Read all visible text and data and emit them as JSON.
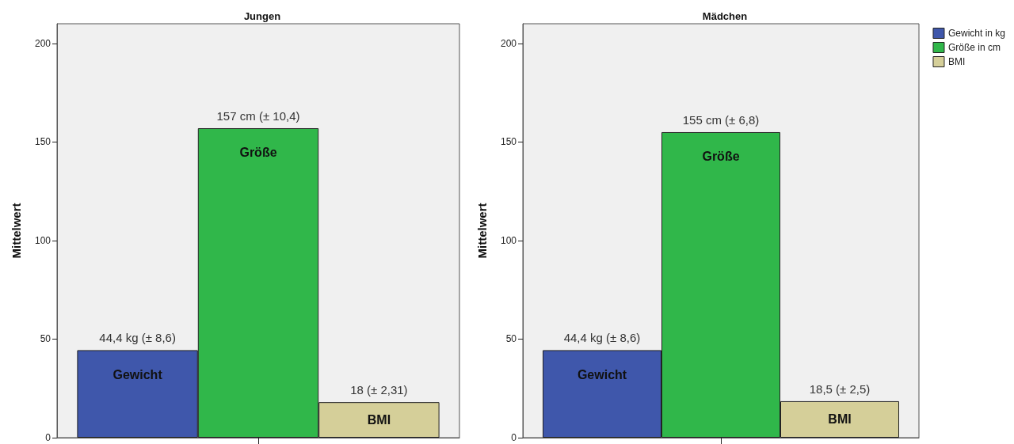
{
  "chart_data": [
    {
      "type": "bar",
      "title": "Jungen",
      "ylabel": "Mittelwert",
      "categories": [
        null
      ],
      "series": [
        {
          "color": "#3f57ab",
          "values": [
            44.4
          ],
          "value_labels": [
            "44,4 kg (± 8,6)"
          ]
        },
        {
          "color": "#30b74a",
          "values": [
            157
          ],
          "value_labels": [
            "157 cm (± 10,4)"
          ]
        },
        {
          "color": "#d5cf99",
          "values": [
            18
          ],
          "value_labels": [
            "18 (± 2,31)"
          ]
        }
      ],
      "annotations": [
        "Gewicht",
        "Größe",
        "BMI"
      ],
      "ylim": [
        0,
        210
      ],
      "yticks": [
        0,
        50,
        100,
        150,
        200
      ],
      "grid": false,
      "legend": false
    },
    {
      "type": "bar",
      "title": "Mädchen",
      "ylabel": "Mittelwert",
      "categories": [
        null
      ],
      "series": [
        {
          "name": "Gewicht in kg",
          "color": "#3f57ab",
          "values": [
            44.4
          ],
          "value_labels": [
            "44,4 kg (± 8,6)"
          ]
        },
        {
          "name": "Größe in cm",
          "color": "#30b74a",
          "values": [
            155
          ],
          "value_labels": [
            "155 cm (± 6,8)"
          ]
        },
        {
          "name": "BMI",
          "color": "#d5cf99",
          "values": [
            18.5
          ],
          "value_labels": [
            "18,5 (± 2,5)"
          ]
        }
      ],
      "annotations": [
        "Gewicht",
        "Größe",
        "BMI"
      ],
      "ylim": [
        0,
        210
      ],
      "yticks": [
        0,
        50,
        100,
        150,
        200
      ],
      "grid": false,
      "legend": "right"
    }
  ]
}
